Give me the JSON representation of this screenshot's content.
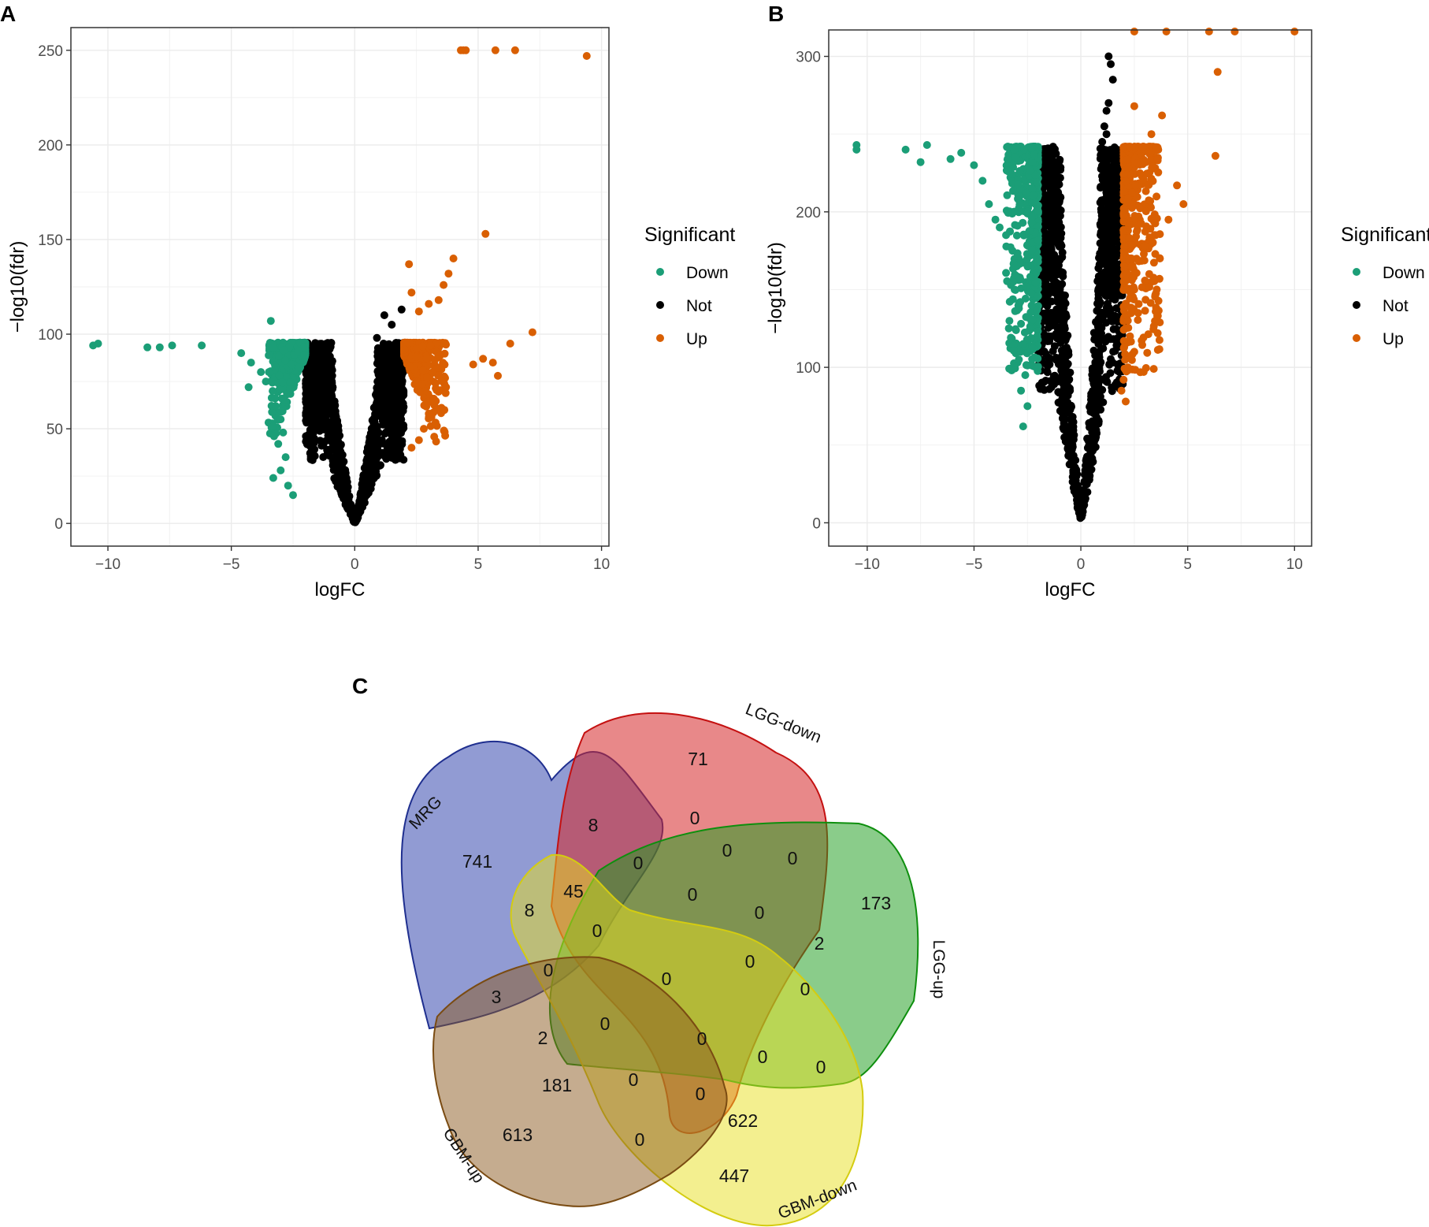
{
  "panels": {
    "A": "A",
    "B": "B",
    "C": "C"
  },
  "chart_data": [
    {
      "panel": "A",
      "type": "scatter",
      "title": "",
      "xlabel": "logFC",
      "ylabel": "−log10(fdr)",
      "xlim": [
        -11.5,
        10.3
      ],
      "ylim": [
        -12,
        262
      ],
      "x_ticks": [
        -10,
        -5,
        0,
        5,
        10
      ],
      "x_tick_labels": [
        "−10",
        "−5",
        "0",
        "5",
        "10"
      ],
      "y_ticks": [
        0,
        50,
        100,
        150,
        200,
        250
      ],
      "y_tick_labels": [
        "0",
        "50",
        "100",
        "150",
        "200",
        "250"
      ],
      "grid": true,
      "legend": {
        "title": "Significant",
        "position": "right",
        "entries": [
          {
            "label": "Down",
            "color": "#1b9e77"
          },
          {
            "label": "Not",
            "color": "#000000"
          },
          {
            "label": "Up",
            "color": "#d95f02"
          }
        ]
      },
      "cap": 95.5,
      "threshold": 2,
      "series": [
        {
          "name": "Down",
          "color": "#1b9e77",
          "points": [
            [
              -10.6,
              94
            ],
            [
              -10.4,
              95
            ],
            [
              -8.4,
              93
            ],
            [
              -7.9,
              93
            ],
            [
              -7.4,
              94
            ],
            [
              -6.2,
              94
            ],
            [
              -3.4,
              107
            ],
            [
              -4.6,
              90
            ],
            [
              -4.2,
              85
            ],
            [
              -3.8,
              80
            ],
            [
              -3.6,
              75
            ],
            [
              -4.3,
              72
            ],
            [
              -3.2,
              62
            ],
            [
              -3.0,
              55
            ],
            [
              -2.9,
              48
            ],
            [
              -3.1,
              42
            ],
            [
              -2.8,
              35
            ],
            [
              -3.0,
              28
            ],
            [
              -3.3,
              24
            ],
            [
              -2.7,
              20
            ],
            [
              -2.5,
              15
            ]
          ]
        },
        {
          "name": "Up",
          "color": "#d95f02",
          "points": [
            [
              4.3,
              250
            ],
            [
              4.4,
              250
            ],
            [
              4.5,
              250
            ],
            [
              5.7,
              250
            ],
            [
              6.5,
              250
            ],
            [
              9.4,
              247
            ],
            [
              5.3,
              153
            ],
            [
              4.0,
              140
            ],
            [
              2.2,
              137
            ],
            [
              3.8,
              132
            ],
            [
              3.6,
              126
            ],
            [
              2.3,
              122
            ],
            [
              3.4,
              118
            ],
            [
              3.0,
              116
            ],
            [
              2.6,
              112
            ],
            [
              7.2,
              101
            ],
            [
              6.3,
              95
            ],
            [
              5.6,
              85
            ],
            [
              5.8,
              78
            ],
            [
              5.2,
              87
            ],
            [
              4.8,
              84
            ],
            [
              3.7,
              72
            ],
            [
              3.2,
              65
            ],
            [
              3.0,
              58
            ],
            [
              2.8,
              50
            ],
            [
              2.6,
              44
            ],
            [
              2.3,
              40
            ]
          ]
        },
        {
          "name": "Not",
          "color": "#000000",
          "points": [
            [
              1.2,
              110
            ],
            [
              1.5,
              105
            ],
            [
              0.9,
              98
            ],
            [
              1.9,
              113
            ]
          ]
        }
      ]
    },
    {
      "panel": "B",
      "type": "scatter",
      "title": "",
      "xlabel": "logFC",
      "ylabel": "−log10(fdr)",
      "xlim": [
        -11.8,
        10.8
      ],
      "ylim": [
        -15,
        317
      ],
      "x_ticks": [
        -10,
        -5,
        0,
        5,
        10
      ],
      "x_tick_labels": [
        "−10",
        "−5",
        "0",
        "5",
        "10"
      ],
      "y_ticks": [
        0,
        100,
        200,
        300
      ],
      "y_tick_labels": [
        "0",
        "100",
        "200",
        "300"
      ],
      "grid": true,
      "legend": {
        "title": "Significant",
        "position": "right",
        "entries": [
          {
            "label": "Down",
            "color": "#1b9e77"
          },
          {
            "label": "Not",
            "color": "#000000"
          },
          {
            "label": "Up",
            "color": "#d95f02"
          }
        ]
      },
      "cap": 242,
      "threshold": 2,
      "series": [
        {
          "name": "Down",
          "color": "#1b9e77",
          "points": [
            [
              -10.5,
              240
            ],
            [
              -10.5,
              243
            ],
            [
              -8.2,
              240
            ],
            [
              -7.5,
              232
            ],
            [
              -7.2,
              243
            ],
            [
              -6.1,
              234
            ],
            [
              -5.6,
              238
            ],
            [
              -5.0,
              230
            ],
            [
              -4.6,
              220
            ],
            [
              -4.3,
              205
            ],
            [
              -4.0,
              195
            ],
            [
              -3.8,
              190
            ],
            [
              -3.5,
              185
            ],
            [
              -3.2,
              175
            ],
            [
              -3.0,
              165
            ],
            [
              -3.1,
              150
            ],
            [
              -2.9,
              140
            ],
            [
              -2.8,
              128
            ],
            [
              -2.7,
              115
            ],
            [
              -2.9,
              105
            ],
            [
              -2.6,
              95
            ],
            [
              -2.8,
              85
            ],
            [
              -2.5,
              75
            ],
            [
              -2.7,
              62
            ]
          ]
        },
        {
          "name": "Up",
          "color": "#d95f02",
          "points": [
            [
              2.5,
              316
            ],
            [
              4.0,
              316
            ],
            [
              6.0,
              316
            ],
            [
              7.2,
              316
            ],
            [
              10.0,
              316
            ],
            [
              6.4,
              290
            ],
            [
              6.3,
              236
            ],
            [
              4.5,
              217
            ],
            [
              3.8,
              262
            ],
            [
              2.5,
              268
            ],
            [
              3.3,
              250
            ],
            [
              4.8,
              205
            ],
            [
              4.1,
              195
            ],
            [
              3.5,
              185
            ],
            [
              3.0,
              178
            ],
            [
              3.7,
              170
            ],
            [
              3.2,
              160
            ],
            [
              3.5,
              136
            ],
            [
              2.5,
              150
            ],
            [
              2.2,
              130
            ],
            [
              2.3,
              120
            ],
            [
              2.5,
              110
            ],
            [
              2.2,
              100
            ],
            [
              2.0,
              92
            ],
            [
              1.9,
              85
            ],
            [
              2.1,
              78
            ]
          ]
        },
        {
          "name": "Not",
          "color": "#000000",
          "points": [
            [
              1.3,
              300
            ],
            [
              1.4,
              295
            ],
            [
              1.5,
              285
            ],
            [
              1.3,
              270
            ],
            [
              1.2,
              265
            ],
            [
              1.1,
              255
            ],
            [
              1.2,
              250
            ],
            [
              1.0,
              245
            ]
          ]
        }
      ]
    }
  ],
  "venn": {
    "sets": [
      "MRG",
      "LGG-down",
      "LGG-up",
      "GBM-down",
      "GBM-up"
    ],
    "counts": [
      "71",
      "741",
      "173",
      "447",
      "613",
      "8",
      "0",
      "0",
      "0",
      "0",
      "45",
      "8",
      "0",
      "0",
      "2",
      "0",
      "0",
      "0",
      "0",
      "0",
      "3",
      "0",
      "0",
      "0",
      "0",
      "2",
      "181",
      "0",
      "0",
      "622",
      "0"
    ]
  }
}
